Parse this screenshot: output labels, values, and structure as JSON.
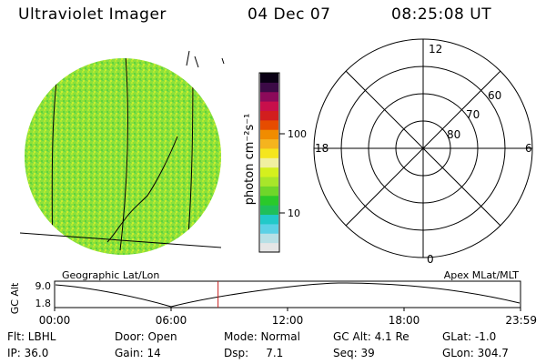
{
  "header": {
    "title": "Ultraviolet Imager",
    "date": "04 Dec 07",
    "time": "08:25:08 UT"
  },
  "colorbar": {
    "unit_label": "photon cm⁻²s⁻¹",
    "ticks": [
      {
        "label": "100",
        "value": 100
      },
      {
        "label": "10",
        "value": 10
      }
    ],
    "range": [
      3,
      330
    ],
    "colors": [
      "#e6e6e6",
      "#b8e0e6",
      "#5cd1e6",
      "#22c9c9",
      "#1fbf5a",
      "#2ac92a",
      "#6fd62a",
      "#a8e62a",
      "#d4f01e",
      "#f0f0a0",
      "#f5e61e",
      "#f5b41e",
      "#f08c00",
      "#e64c00",
      "#d21e1e",
      "#c80f4b",
      "#8c0a5a",
      "#3c0a46",
      "#0a0014"
    ]
  },
  "polar": {
    "labels": [
      "12",
      "6",
      "18",
      "0",
      "60",
      "70",
      "80"
    ]
  },
  "timeline": {
    "alt_axis_label": "GC Alt",
    "alt_ticks": [
      "9.0",
      "1.8"
    ],
    "left_label": "Geographic Lat/Lon",
    "right_label": "Apex MLat/MLT",
    "time_ticks": [
      "00:00",
      "06:00",
      "12:00",
      "18:00",
      "23:59"
    ],
    "current_hours": 8.42
  },
  "footer": {
    "flt": "Flt: LBHL",
    "door": "Door: Open",
    "mode": "Mode: Normal",
    "gc_alt": "GC Alt: 4.1 Re",
    "glat": "GLat:  -1.0",
    "ip": "IP: 36.0",
    "gain": "Gain: 14",
    "dsp": "Dsp:     7.1",
    "seq": "Seq: 39",
    "glon": "GLon: 304.7"
  }
}
